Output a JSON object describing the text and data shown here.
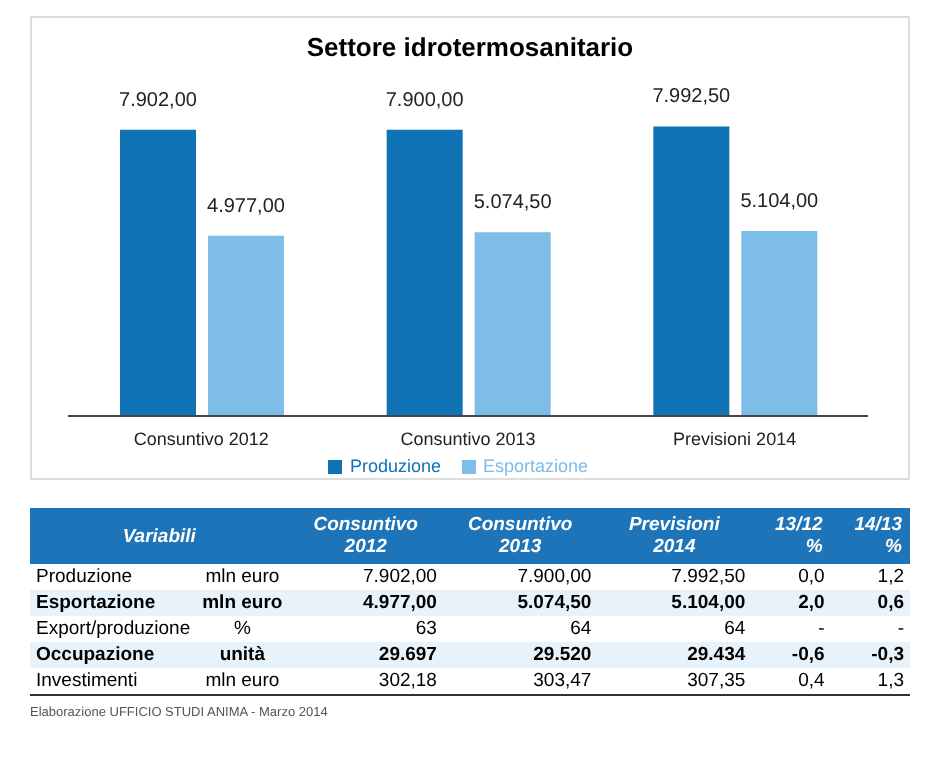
{
  "chart_data": [
    {
      "type": "bar",
      "title": "Settore idrotermosanitario",
      "categories": [
        "Consuntivo 2012",
        "Consuntivo 2013",
        "Previsioni 2014"
      ],
      "series": [
        {
          "name": "Produzione",
          "color": "#0e72b5",
          "values": [
            7902.0,
            7900.0,
            7992.5
          ],
          "value_labels": [
            "7.902,00",
            "7.900,00",
            "7.992,50"
          ]
        },
        {
          "name": "Esportazione",
          "color": "#7dbde8",
          "values": [
            4977.0,
            5074.5,
            5104.0
          ],
          "value_labels": [
            "4.977,00",
            "5.074,50",
            "5.104,00"
          ]
        }
      ],
      "legend": "bottom"
    },
    {
      "type": "other",
      "categories": [
        "Variabili",
        "Consuntivo 2012",
        "Consuntivo 2013",
        "Previsioni 2014",
        "13/12 %",
        "14/13 %"
      ],
      "y_categories": [
        "Produzione",
        "Esportazione",
        "Export/produzione",
        "Occupazione",
        "Investimenti"
      ],
      "cell_labels": [
        [
          "mln euro",
          "7.902,00",
          "7.900,00",
          "7.992,50",
          "0,0",
          "1,2"
        ],
        [
          "mln euro",
          "4.977,00",
          "5.074,50",
          "5.104,00",
          "2,0",
          "0,6"
        ],
        [
          "%",
          "63",
          "64",
          "64",
          "-",
          "-"
        ],
        [
          "unità",
          "29.697",
          "29.520",
          "29.434",
          "-0,6",
          "-0,3"
        ],
        [
          "mln euro",
          "302,18",
          "303,47",
          "307,35",
          "0,4",
          "1,3"
        ]
      ],
      "annotations": [
        "Elaborazione UFFICIO STUDI ANIMA - Marzo 2014"
      ]
    }
  ]
}
